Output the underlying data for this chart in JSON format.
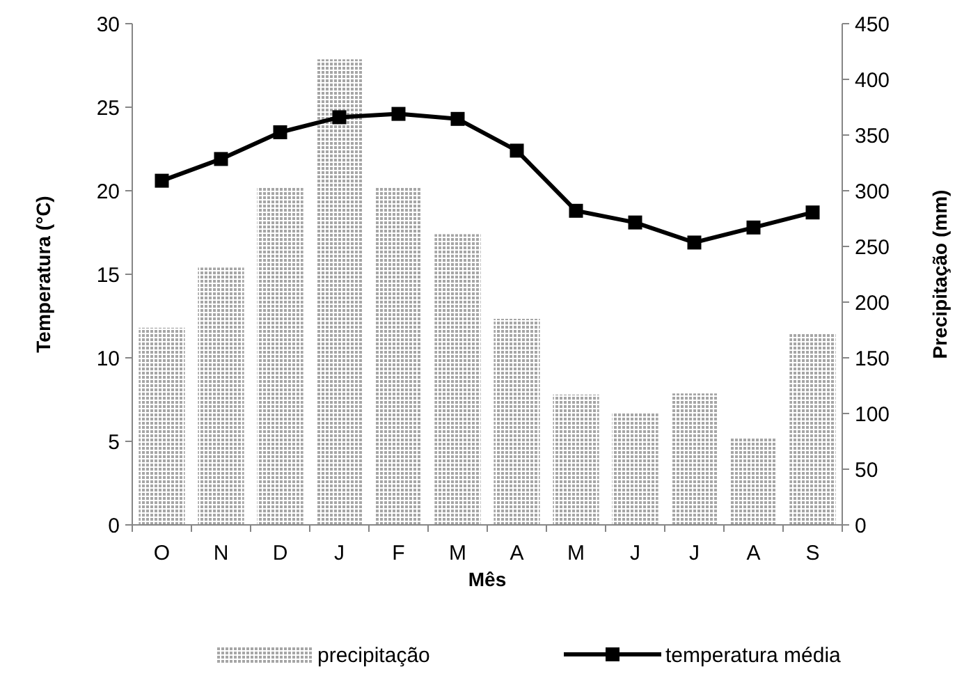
{
  "chart_data": {
    "type": "bar",
    "xlabel": "Mês",
    "ylabel": "Temperatura (°C)",
    "y2label": "Precipitação (mm)",
    "categories": [
      "O",
      "N",
      "D",
      "J",
      "F",
      "M",
      "A",
      "M",
      "J",
      "J",
      "A",
      "S"
    ],
    "series": [
      {
        "name": "precipitação",
        "axis": "y2",
        "color": "#a6a6a6",
        "values": [
          177,
          231,
          303,
          418,
          303,
          261,
          185,
          117,
          100,
          118,
          78,
          172
        ]
      },
      {
        "name": "temperatura média",
        "type": "line",
        "axis": "y",
        "color": "#000000",
        "marker": "square",
        "values": [
          20.6,
          21.9,
          23.5,
          24.4,
          24.6,
          24.3,
          22.4,
          18.8,
          18.1,
          16.9,
          17.8,
          18.7
        ]
      }
    ],
    "ylim": [
      0,
      30
    ],
    "yticks": [
      0,
      5,
      10,
      15,
      20,
      25,
      30
    ],
    "y2lim": [
      0,
      450
    ],
    "y2ticks": [
      0,
      50,
      100,
      150,
      200,
      250,
      300,
      350,
      400,
      450
    ],
    "legend": "bottom",
    "grid": false
  }
}
